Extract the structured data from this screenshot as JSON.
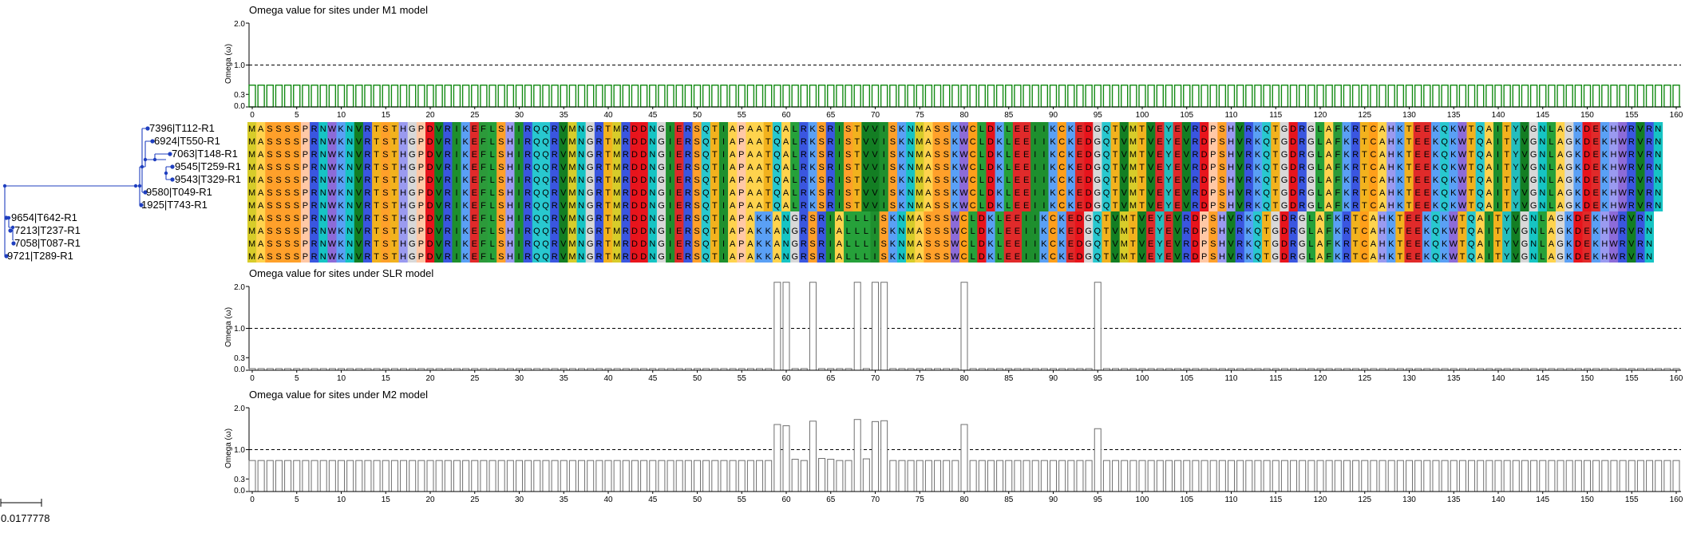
{
  "colors": {
    "tree": "#1f3fbf",
    "m1_bar": "#138a13",
    "bar_outline": "#6f6f6f",
    "dashed": "#000000"
  },
  "tree": {
    "leaves": [
      "7396|T112-R1",
      "6924|T550-R1",
      "7063|T148-R1",
      "9545|T259-R1",
      "9543|T329-R1",
      "9580|T049-R1",
      "1925|T743-R1",
      "9654|T642-R1",
      "7213|T237-R1",
      "7058|T087-R1",
      "9721|T289-R1"
    ],
    "scale_label": "0.0177778"
  },
  "chart_data": [
    {
      "type": "bar",
      "title": "Omega value for sites under M1 model",
      "ylabel": "Omega (ω)",
      "yticks": [
        "2.0",
        "1.0",
        "0.3",
        "0.0"
      ],
      "ylim": [
        0,
        2.0
      ],
      "x_ticks": [
        0,
        5,
        10,
        15,
        20,
        25,
        30,
        35,
        40,
        45,
        50,
        55,
        60,
        65,
        70,
        75,
        80,
        85,
        90,
        95,
        100,
        105,
        110,
        115,
        120,
        125,
        130,
        135,
        140,
        145,
        150,
        155,
        160
      ],
      "xlim": [
        0,
        160
      ],
      "reference_line": 1.0,
      "default_value": 0.52,
      "overrides": {}
    },
    {
      "type": "bar",
      "title": "Omega value for sites under SLR model",
      "ylabel": "Omega (ω)",
      "yticks": [
        "2.0",
        "1.0",
        "0.3",
        "0.0"
      ],
      "ylim": [
        0,
        2.0
      ],
      "x_ticks": [
        0,
        5,
        10,
        15,
        20,
        25,
        30,
        35,
        40,
        45,
        50,
        55,
        60,
        65,
        70,
        75,
        80,
        85,
        90,
        95,
        100,
        105,
        110,
        115,
        120,
        125,
        130,
        135,
        140,
        145,
        150,
        155,
        160
      ],
      "xlim": [
        0,
        160
      ],
      "reference_line": 1.0,
      "default_value": 0.04,
      "overrides": {
        "59": 2.1,
        "60": 2.1,
        "63": 2.1,
        "68": 2.1,
        "70": 2.1,
        "71": 2.1,
        "80": 2.1,
        "95": 2.1
      }
    },
    {
      "type": "bar",
      "title": "Omega value for sites under M2 model",
      "ylabel": "Omega (ω)",
      "yticks": [
        "2.0",
        "1.0",
        "0.3",
        "0.0"
      ],
      "ylim": [
        0,
        2.0
      ],
      "x_ticks": [
        0,
        5,
        10,
        15,
        20,
        25,
        30,
        35,
        40,
        45,
        50,
        55,
        60,
        65,
        70,
        75,
        80,
        85,
        90,
        95,
        100,
        105,
        110,
        115,
        120,
        125,
        130,
        135,
        140,
        145,
        150,
        155,
        160
      ],
      "xlim": [
        0,
        160
      ],
      "reference_line": 1.0,
      "default_value": 0.74,
      "overrides": {
        "59": 1.6,
        "60": 1.57,
        "63": 1.68,
        "68": 1.72,
        "70": 1.67,
        "71": 1.69,
        "80": 1.6,
        "95": 1.5,
        "61": 0.77,
        "62": 0.74,
        "64": 0.79,
        "65": 0.77,
        "69": 0.78
      }
    }
  ],
  "alignment": {
    "sequences": [
      "MASSSSPRNWKNVRTSTHGPDVRIKEFLSHIRQQRVMNGRTMRDDNGIERSQTIAPAATQALRKSRISTVVISKNMASSKWCLDKLEEIIKCKEDGQTVMTVEYEVRDPSHVRKQTGDRGLAFKRTCAHKTEEKQKWTQAITYVGNLAGKDEKHWRVRN",
      "MASSSSPRNWKNVRTSTHGPDVRIKEFLSHIRQQRVMNGRTMRDDNGIERSQTIAPAATQALRKSRISTVVISKNMASSKWCLDKLEEIIKCKEDGQTVMTVEYEVRDPSHVRKQTGDRGLAFKRTCAHKTEEKQKWTQAITYVGNLAGKDEKHWRVRN",
      "MASSSSPRNWKNVRTSTHGPDVRIKEFLSHIRQQRVMNGRTMRDDNGIERSQTIAPAATQALRKSRISTVVISKNMASSKWCLDKLEEIIKCKEDGQTVMTVEYEVRDPSHVRKQTGDRGLAFKRTCAHKTEEKQKWTQAITYVGNLAGKDEKHWRVRN",
      "MASSSSPRNWKNVRTSTHGPDVRIKEFLSHIRQQRVMNGRTMRDDNGIERSQTIAPAATQALRKSRISTVVISKNMASSKWCLDKLEEIIKCKEDGQTVMTVEYEVRDPSHVRKQTGDRGLAFKRTCAHKTEEKQKWTQAITYVGNLAGKDEKHWRVRN",
      "MASSSSPRNWKNVRTSTHGPDVRIKEFLSHIRQQRVMNGRTMRDDNGIERSQTIAPAATQALRKSRISTVVISKNMASSKWCLDKLEEIIKCKEDGQTVMTVEYEVRDPSHVRKQTGDRGLAFKRTCAHKTEEKQKWTQAITYVGNLAGKDEKHWRVRN",
      "MASSSSPRNWKNVRTSTHGPDVRIKEFLSHIRQQRVMNGRTMRDDNGIERSQTIAPAATQALRKSRISTVVISKNMASSKWCLDKLEEIIKCKEDGQTVMTVEYEVRDPSHVRKQTGDRGLAFKRTCAHKTEEKQKWTQAITYVGNLAGKDEKHWRVRN",
      "MASSSSPRNWKNVRTSTHGPDVRIKEFLSHIRQQRVMNGRTMRDDNGIERSQTIAPAATQALRKSRISTVVISKNMASSKWCLDKLEEIIKCKEDGQTVMTVEYEVRDPSHVRKQTGDRGLAFKRTCAHKTEEKQKWTQAITYVGNLAGKDEKHWRVRN",
      "MASSSSPRNWKNVRTSTHGPDVRIKEFLSHIRQQRVMNGRTMRDDNGIERSQTIAPAKKANGRSRIALLLISKNMASSSWCLDKLEEIIKCKEDGQTVMTVEYEVRDPSHVRKQTGDRGLAFKRTCAHKTEEKQKWTQAITYVGNLAGKDEKHWRVRN",
      "MASSSSPRNWKNVRTSTHGPDVRIKEFLSHIRQQRVMNGRTMRDDNGIERSQTIAPAKKANGRSRIALLLISKNMASSSWCLDKLEEIIKCKEDGQTVMTVEYEVRDPSHVRKQTGDRGLAFKRTCAHKTEEKQKWTQAITYVGNLAGKDEKHWRVRN",
      "MASSSSPRNWKNVRTSTHGPDVRIKEFLSHIRQQRVMNGRTMRDDNGIERSQTIAPAKKANGRSRIALLLISKNMASSSWCLDKLEEIIKCKEDGQTVMTVEYEVRDPSHVRKQTGDRGLAFKRTCAHKTEEKQKWTQAITYVGNLAGKDEKHWRVRN",
      "MASSSSPRNWKNVRTSTHGPDVRIKEFLSHIRQQRVMNGRTMRDDNGIERSQTIAPAKKANGRSRIALLLISKNMASSSWCLDKLEEIIKCKEDGQTVMTVEYEVRDPSHVRKQTGDRGLAFKRTCAHKTEEKQKWTQAITYVGNLAGKDEKHWRVRN"
    ],
    "residue_colors": {
      "A": "#ffd34d",
      "C": "#ff9f1a",
      "D": "#e8141c",
      "E": "#e02a2a",
      "F": "#2c9a3a",
      "G": "#d8d8d8",
      "H": "#9a9af0",
      "I": "#1e8f2e",
      "K": "#5aa0f5",
      "L": "#26a13a",
      "M": "#d7cc2a",
      "N": "#16c4c4",
      "P": "#ffc8a6",
      "Q": "#28c8cf",
      "R": "#3a56e0",
      "S": "#ffa02a",
      "T": "#f2b21e",
      "V": "#137e23",
      "W": "#8c6bd8",
      "Y": "#24bdbd"
    }
  }
}
